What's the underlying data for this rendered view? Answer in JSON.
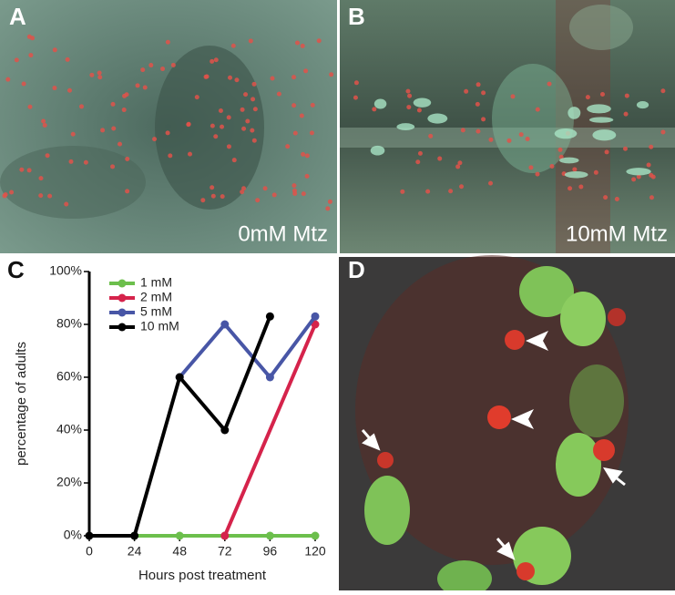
{
  "panels": {
    "a": {
      "label": "A",
      "caption": "0mM Mtz"
    },
    "b": {
      "label": "B",
      "caption": "10mM Mtz"
    },
    "d": {
      "label": "D"
    }
  },
  "chart_data": {
    "type": "line",
    "label": "C",
    "xlabel": "Hours post treatment",
    "ylabel": "percentage of adults",
    "xlim": [
      0,
      120
    ],
    "xticks": [
      0,
      24,
      48,
      72,
      96,
      120
    ],
    "ylim": [
      0,
      100
    ],
    "yticks": [
      {
        "value": 0,
        "label": "0%"
      },
      {
        "value": 20,
        "label": "20%"
      },
      {
        "value": 40,
        "label": "40%"
      },
      {
        "value": 60,
        "label": "60%"
      },
      {
        "value": 80,
        "label": "80%"
      },
      {
        "value": 100,
        "label": "100%"
      }
    ],
    "legend": "upper left",
    "series": [
      {
        "name": "1 mM",
        "color": "#6cbf4c",
        "x": [
          24,
          48,
          72,
          96,
          120
        ],
        "values": [
          0,
          0,
          0,
          0,
          0
        ]
      },
      {
        "name": "2 mM",
        "color": "#d5234b",
        "x": [
          72,
          120
        ],
        "values": [
          0,
          80
        ]
      },
      {
        "name": "5 mM",
        "color": "#4856a6",
        "x": [
          48,
          72,
          96,
          120
        ],
        "values": [
          60,
          80,
          60,
          83
        ]
      },
      {
        "name": "10 mM",
        "color": "#000000",
        "x": [
          0,
          24,
          48,
          72,
          96
        ],
        "values": [
          0,
          0,
          60,
          40,
          83
        ]
      }
    ]
  }
}
